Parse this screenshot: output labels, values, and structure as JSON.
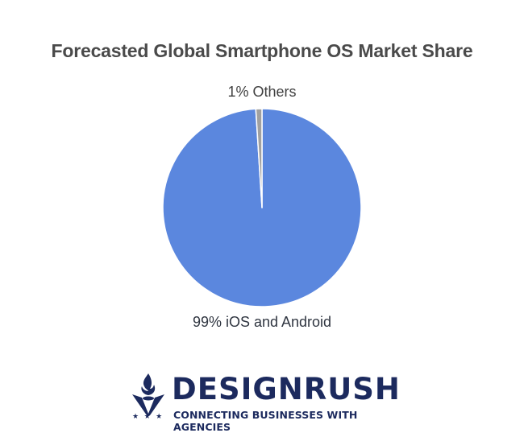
{
  "chart_data": {
    "type": "pie",
    "title": "Forecasted Global Smartphone OS Market Share",
    "categories": [
      "iOS and Android",
      "Others"
    ],
    "values": [
      99,
      1
    ],
    "labels": [
      "99% iOS and Android",
      "1% Others"
    ],
    "colors": [
      "#5b87de",
      "#a0a0a0"
    ],
    "legend": "none (direct labels outside slices)"
  },
  "header": {
    "title": "Forecasted Global Smartphone OS Market Share"
  },
  "labels": {
    "others": "1% Others",
    "main": "99% iOS and Android"
  },
  "branding": {
    "name": "DESIGNRUSH",
    "tagline": "CONNECTING BUSINESSES WITH AGENCIES",
    "stars": "★ ★ ★",
    "color": "#1c2a5e"
  }
}
